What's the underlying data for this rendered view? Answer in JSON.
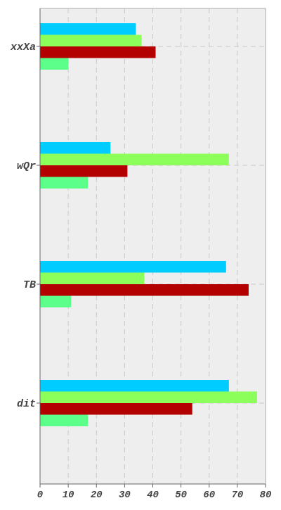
{
  "chart_data": {
    "type": "bar",
    "orientation": "horizontal",
    "categories": [
      "xxXa",
      "wQr",
      "TB",
      "dit"
    ],
    "series": [
      {
        "color": "#00ccff",
        "values": [
          34,
          25,
          66,
          67
        ]
      },
      {
        "color": "#8cff5a",
        "values": [
          36,
          67,
          37,
          77
        ]
      },
      {
        "color": "#b30000",
        "values": [
          41,
          31,
          74,
          54
        ]
      },
      {
        "color": "#5cff8a",
        "values": [
          10,
          17,
          11,
          17
        ]
      }
    ],
    "xlim": [
      0,
      80
    ],
    "xticks": [
      0,
      10,
      20,
      30,
      40,
      50,
      60,
      70,
      80
    ],
    "grid": true,
    "background": "#eeeeee"
  }
}
